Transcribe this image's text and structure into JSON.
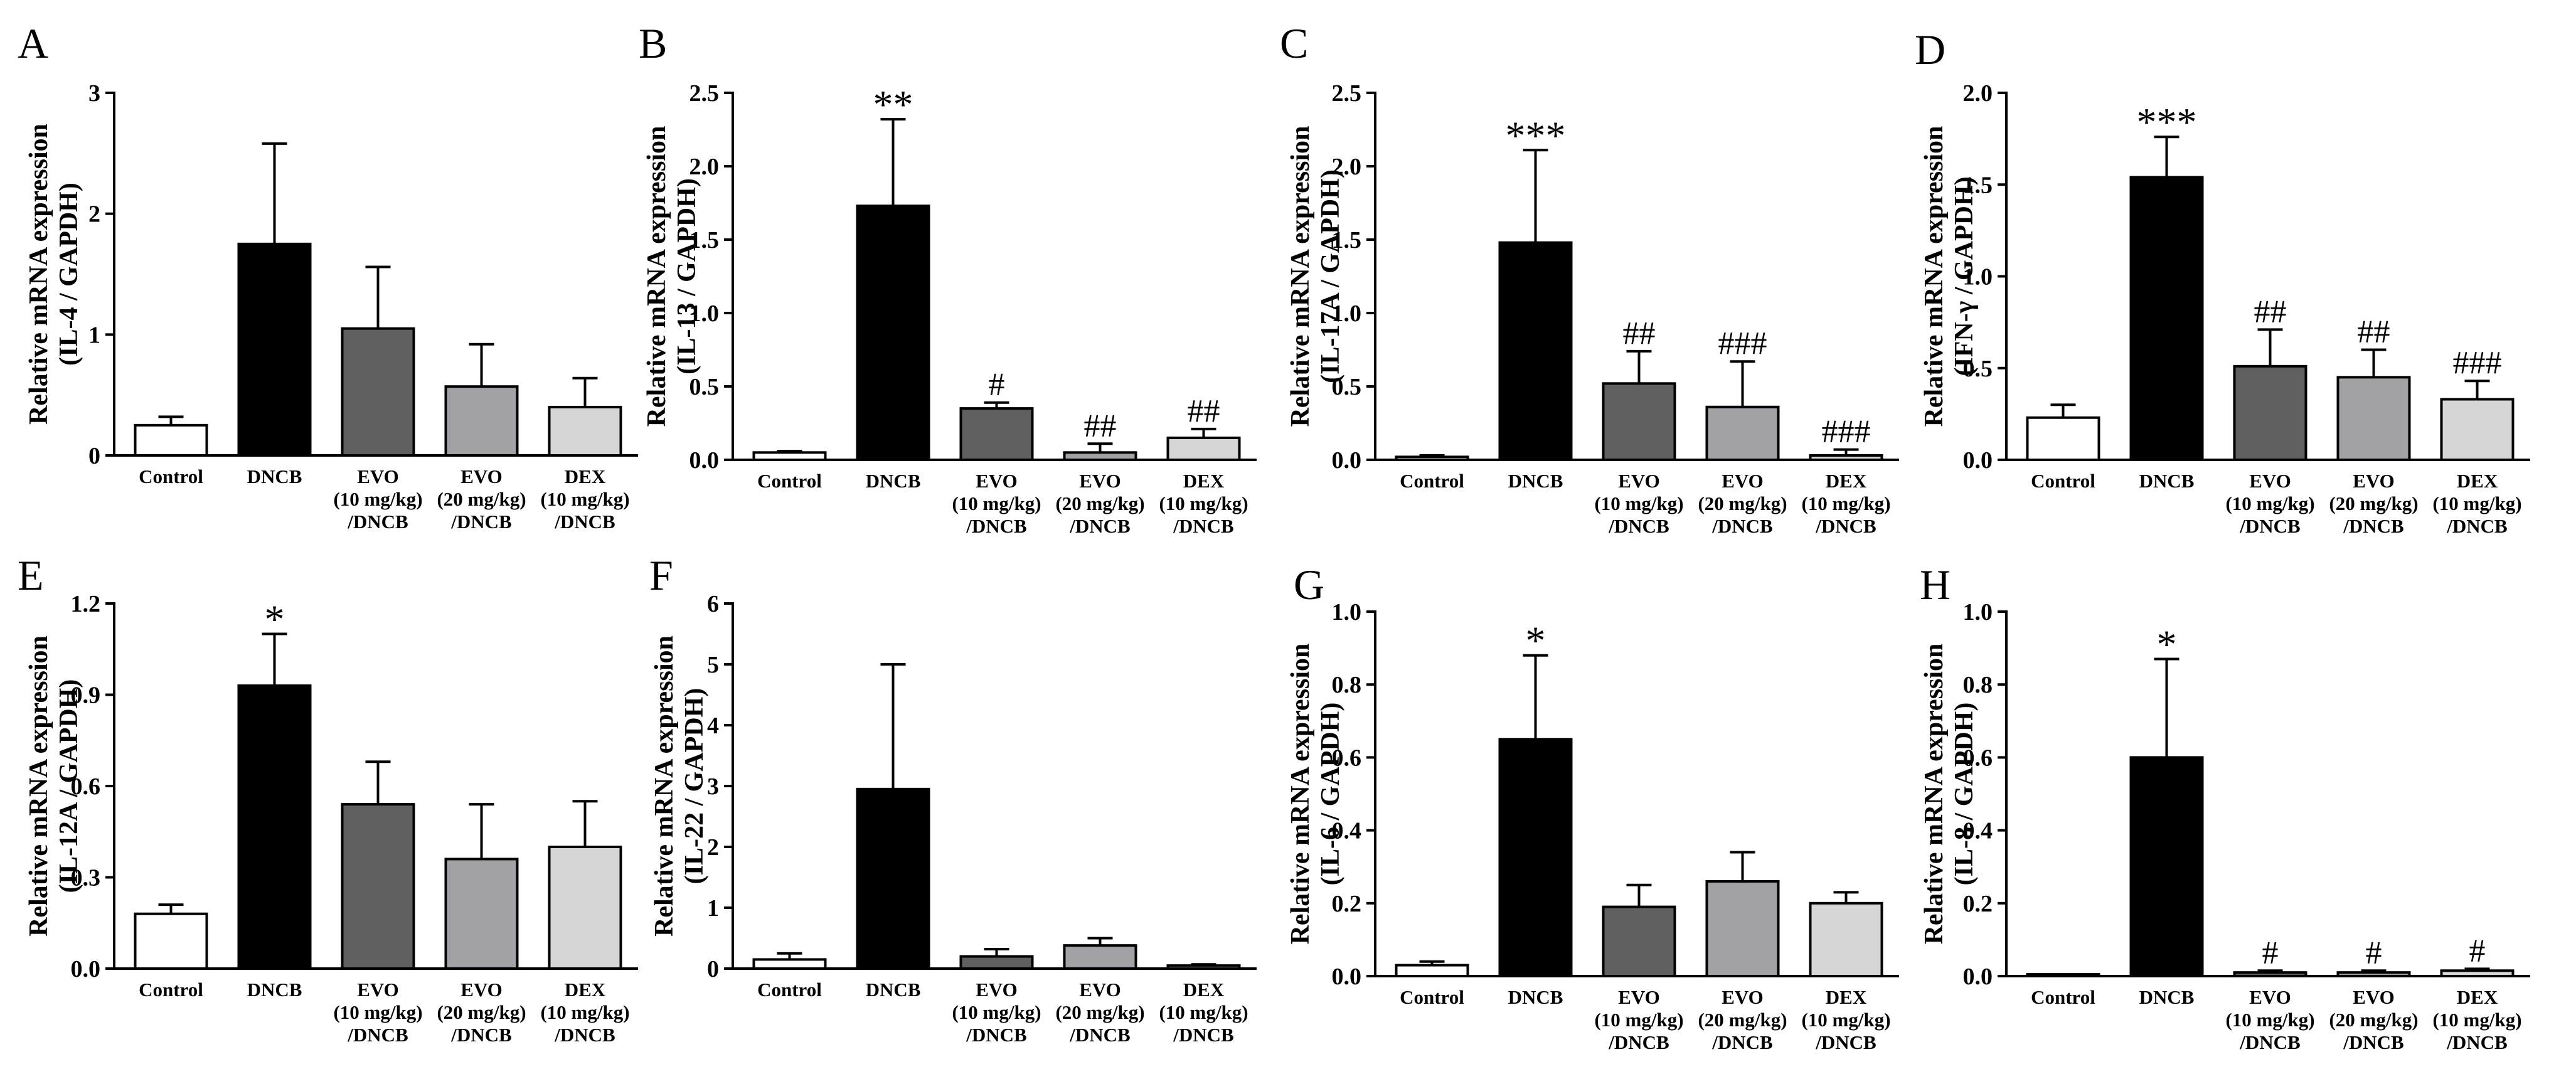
{
  "figure": {
    "colors": {
      "Control": "#ffffff",
      "DNCB": "#000000",
      "EVO10": "#5f5f5f",
      "EVO20": "#a2a2a6",
      "DEX": "#d6d6d6"
    },
    "x_labels": [
      [
        "Control"
      ],
      [
        "DNCB"
      ],
      [
        "EVO",
        "(10 mg/kg)",
        "/DNCB"
      ],
      [
        "EVO",
        "(20 mg/kg)",
        "/DNCB"
      ],
      [
        "DEX",
        "(10 mg/kg)",
        "/DNCB"
      ]
    ]
  },
  "chart_data": [
    {
      "panel": "A",
      "type": "bar",
      "ylabel": [
        "Relative mRNA expression",
        "(IL-4 / GAPDH)"
      ],
      "categories": [
        "Control",
        "DNCB",
        "EVO (10 mg/kg)/DNCB",
        "EVO (20 mg/kg)/DNCB",
        "DEX (10 mg/kg)/DNCB"
      ],
      "values": [
        0.25,
        1.75,
        1.05,
        0.57,
        0.4
      ],
      "errors": [
        0.07,
        0.83,
        0.51,
        0.35,
        0.24
      ],
      "annotations": [
        "",
        "",
        "",
        "",
        ""
      ],
      "ylim": [
        0,
        3
      ],
      "yticks": [
        "0",
        "1",
        "2",
        "3"
      ]
    },
    {
      "panel": "B",
      "type": "bar",
      "ylabel": [
        "Relative mRNA expression",
        "(IL-13 / GAPDH)"
      ],
      "categories": [
        "Control",
        "DNCB",
        "EVO (10 mg/kg)/DNCB",
        "EVO (20 mg/kg)/DNCB",
        "DEX (10 mg/kg)/DNCB"
      ],
      "values": [
        0.05,
        1.73,
        0.35,
        0.05,
        0.15
      ],
      "errors": [
        0.01,
        0.59,
        0.04,
        0.06,
        0.06
      ],
      "annotations": [
        "",
        "**",
        "#",
        "##",
        "##"
      ],
      "ylim": [
        0,
        2.5
      ],
      "yticks": [
        "0.0",
        "0.5",
        "1.0",
        "1.5",
        "2.0",
        "2.5"
      ]
    },
    {
      "panel": "C",
      "type": "bar",
      "ylabel": [
        "Relative mRNA expression",
        "(IL-17A / GAPDH)"
      ],
      "categories": [
        "Control",
        "DNCB",
        "EVO (10 mg/kg)/DNCB",
        "EVO (20 mg/kg)/DNCB",
        "DEX (10 mg/kg)/DNCB"
      ],
      "values": [
        0.02,
        1.48,
        0.52,
        0.36,
        0.03
      ],
      "errors": [
        0.01,
        0.63,
        0.22,
        0.31,
        0.04
      ],
      "annotations": [
        "",
        "***",
        "##",
        "###",
        "###"
      ],
      "ylim": [
        0,
        2.5
      ],
      "yticks": [
        "0.0",
        "0.5",
        "1.0",
        "1.5",
        "2.0",
        "2.5"
      ]
    },
    {
      "panel": "D",
      "type": "bar",
      "ylabel": [
        "Relative mRNA expression",
        "(IFN-γ / GAPDH)"
      ],
      "categories": [
        "Control",
        "DNCB",
        "EVO (10 mg/kg)/DNCB",
        "EVO (20 mg/kg)/DNCB",
        "DEX (10 mg/kg)/DNCB"
      ],
      "values": [
        0.23,
        1.54,
        0.51,
        0.45,
        0.33
      ],
      "errors": [
        0.07,
        0.22,
        0.2,
        0.15,
        0.1
      ],
      "annotations": [
        "",
        "***",
        "##",
        "##",
        "###"
      ],
      "ylim": [
        0,
        2.0
      ],
      "yticks": [
        "0.0",
        "0.5",
        "1.0",
        "1.5",
        "2.0"
      ]
    },
    {
      "panel": "E",
      "type": "bar",
      "ylabel": [
        "Relative mRNA expression",
        "(IL-12A / GAPDH)"
      ],
      "categories": [
        "Control",
        "DNCB",
        "EVO (10 mg/kg)/DNCB",
        "EVO (20 mg/kg)/DNCB",
        "DEX (10 mg/kg)/DNCB"
      ],
      "values": [
        0.18,
        0.93,
        0.54,
        0.36,
        0.4
      ],
      "errors": [
        0.03,
        0.17,
        0.14,
        0.18,
        0.15
      ],
      "annotations": [
        "",
        "*",
        "",
        "",
        ""
      ],
      "ylim": [
        0,
        1.2
      ],
      "yticks": [
        "0.0",
        "0.3",
        "0.6",
        "0.9",
        "1.2"
      ]
    },
    {
      "panel": "F",
      "type": "bar",
      "ylabel": [
        "Relative mRNA expression",
        "(IL-22 / GAPDH)"
      ],
      "categories": [
        "Control",
        "DNCB",
        "EVO (10 mg/kg)/DNCB",
        "EVO (20 mg/kg)/DNCB",
        "DEX (10 mg/kg)/DNCB"
      ],
      "values": [
        0.15,
        2.95,
        0.2,
        0.38,
        0.05
      ],
      "errors": [
        0.1,
        2.05,
        0.12,
        0.12,
        0.02
      ],
      "annotations": [
        "",
        "",
        "",
        "",
        ""
      ],
      "ylim": [
        0,
        6
      ],
      "yticks": [
        "0",
        "1",
        "2",
        "3",
        "4",
        "5",
        "6"
      ]
    },
    {
      "panel": "G",
      "type": "bar",
      "ylabel": [
        "Relative mRNA expression",
        "(IL-6 / GAPDH)"
      ],
      "categories": [
        "Control",
        "DNCB",
        "EVO (10 mg/kg)/DNCB",
        "EVO (20 mg/kg)/DNCB",
        "DEX (10 mg/kg)/DNCB"
      ],
      "values": [
        0.03,
        0.65,
        0.19,
        0.26,
        0.2
      ],
      "errors": [
        0.01,
        0.23,
        0.06,
        0.08,
        0.03
      ],
      "annotations": [
        "",
        "*",
        "",
        "",
        ""
      ],
      "ylim": [
        0,
        1.0
      ],
      "yticks": [
        "0.0",
        "0.2",
        "0.4",
        "0.6",
        "0.8",
        "1.0"
      ]
    },
    {
      "panel": "H",
      "type": "bar",
      "ylabel": [
        "Relative mRNA expression",
        "(IL-8 / GAPDH)"
      ],
      "categories": [
        "Control",
        "DNCB",
        "EVO (10 mg/kg)/DNCB",
        "EVO (20 mg/kg)/DNCB",
        "DEX (10 mg/kg)/DNCB"
      ],
      "values": [
        0.005,
        0.6,
        0.01,
        0.01,
        0.015
      ],
      "errors": [
        0.0,
        0.27,
        0.005,
        0.005,
        0.005
      ],
      "annotations": [
        "",
        "*",
        "#",
        "#",
        "#"
      ],
      "ylim": [
        0,
        1.0
      ],
      "yticks": [
        "0.0",
        "0.2",
        "0.4",
        "0.6",
        "0.8",
        "1.0"
      ]
    }
  ]
}
